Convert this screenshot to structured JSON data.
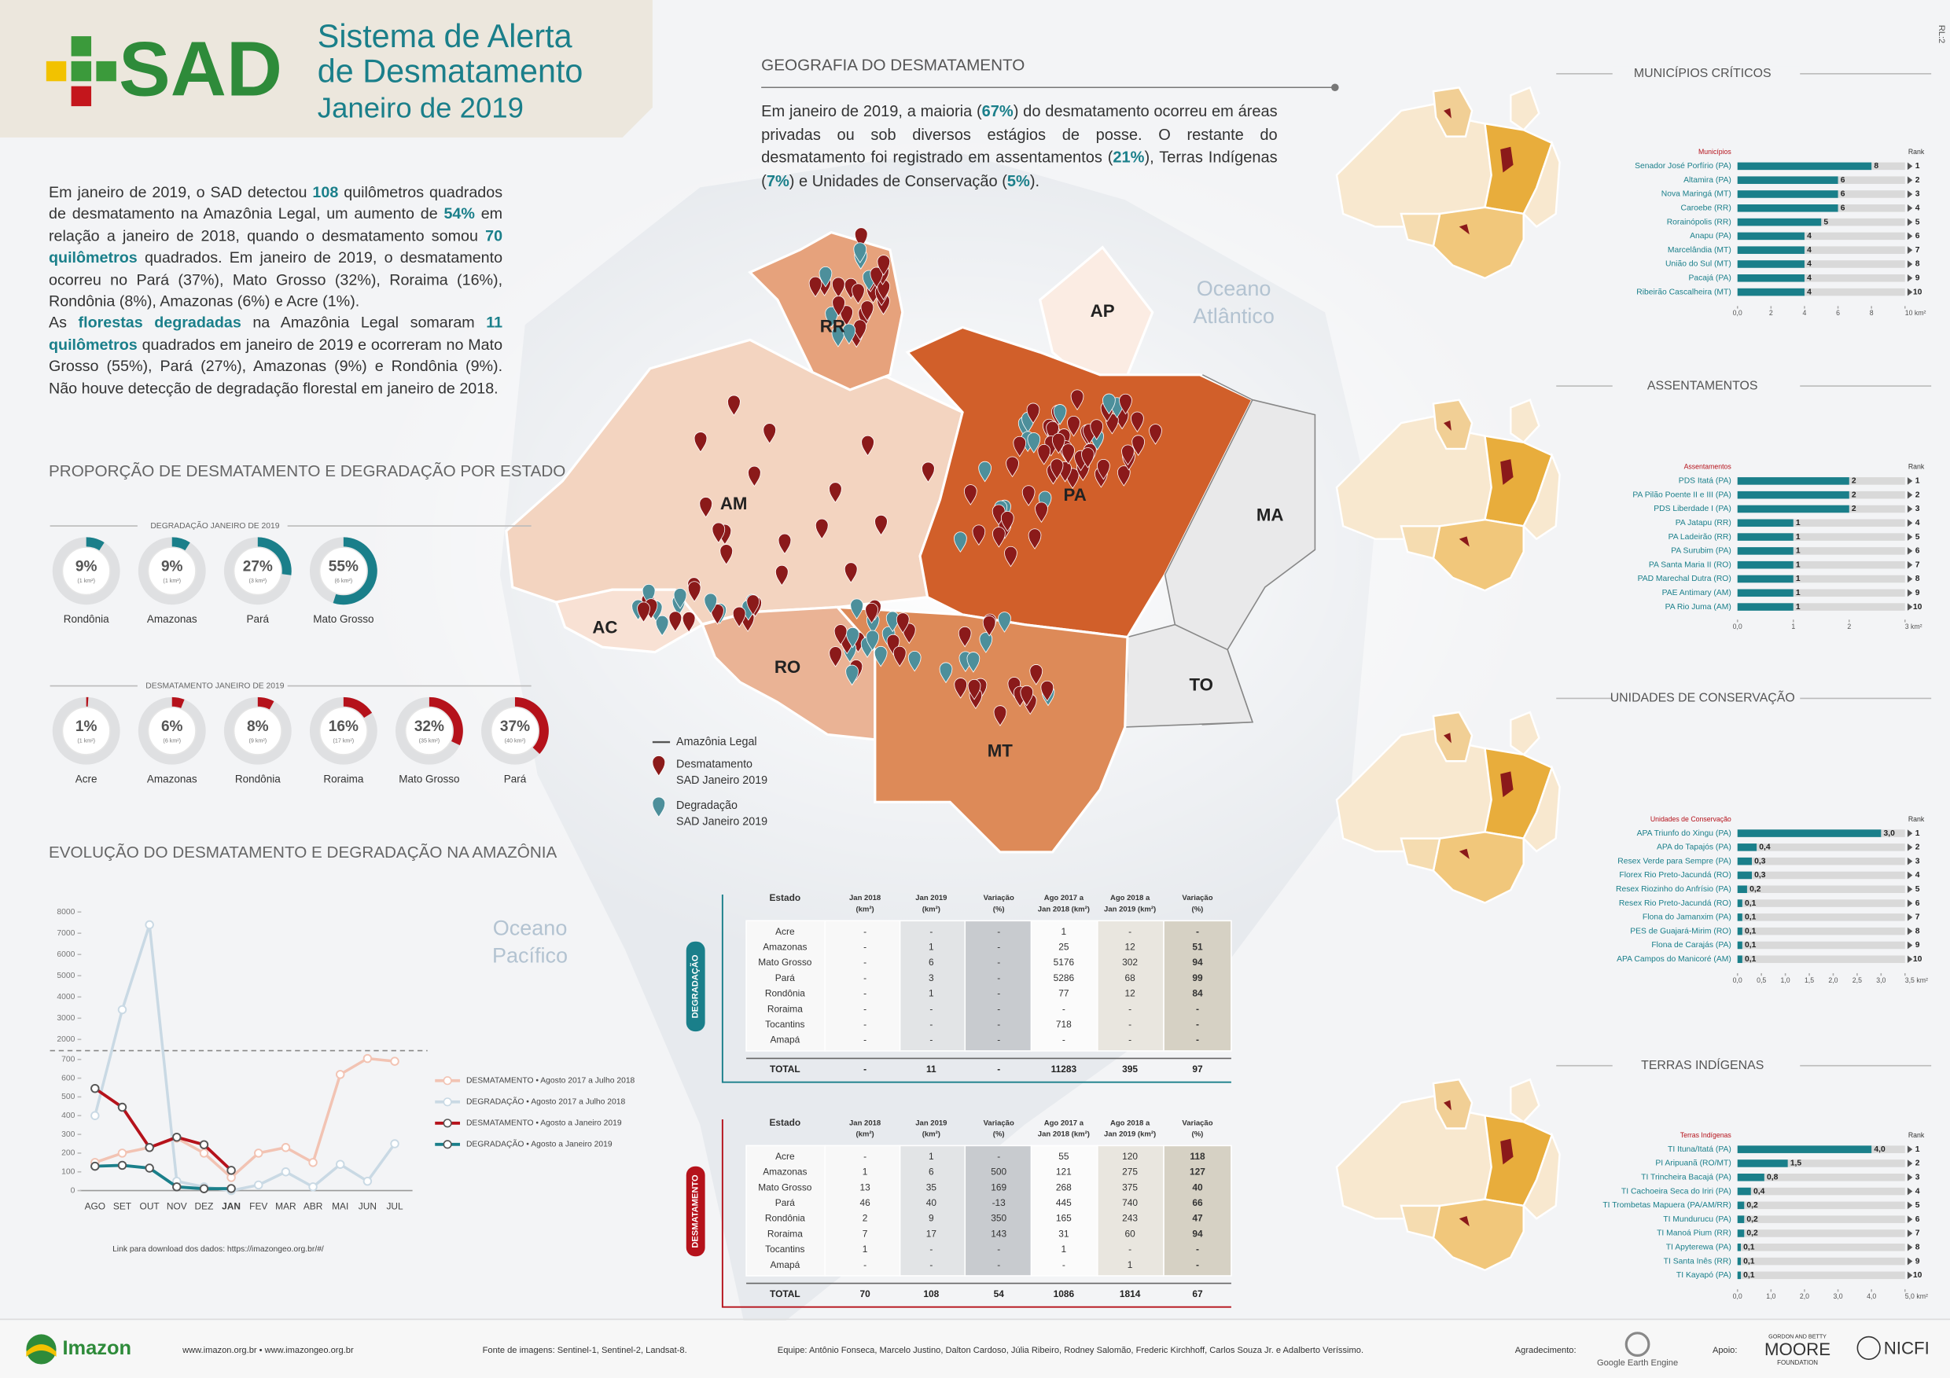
{
  "corner_code": "RL:2",
  "header": {
    "logo": "SAD",
    "title": [
      "Sistema de Alerta",
      "de Desmatamento"
    ],
    "subtitle": "Janeiro de 2019"
  },
  "intro": [
    [
      {
        "text": "Em janeiro de 2019, o SAD detectou "
      },
      {
        "text": "108",
        "em": true
      },
      {
        "text": " quilômetros quadrados de desmatamento na Amazônia Legal, um aumento de "
      },
      {
        "text": "54%",
        "em": true
      },
      {
        "text": " em relação a janeiro de 2018, quando o desmatamento somou "
      },
      {
        "text": "70 quilômetros",
        "em": true
      },
      {
        "text": " quadrados. Em janeiro de 2019, o desmatamento ocorreu no Pará (37%), Mato Grosso (32%), Roraima (16%), Rondônia (8%), Amazonas (6%) e Acre (1%)."
      }
    ],
    [
      {
        "text": "As "
      },
      {
        "text": "florestas degradadas",
        "em": true
      },
      {
        "text": " na Amazônia Legal somaram "
      },
      {
        "text": "11 quilômetros",
        "em": true
      },
      {
        "text": " quadrados em janeiro de 2019 e ocorreram no Mato Grosso (55%), Pará (27%), Amazonas (9%) e Rondônia (9%). Não houve detecção de degradação florestal em janeiro de 2018."
      }
    ]
  ],
  "geografia": {
    "title": "GEOGRAFIA DO DESMATAMENTO",
    "text": [
      {
        "text": "Em janeiro de 2019, a maioria ("
      },
      {
        "text": "67%",
        "em": true
      },
      {
        "text": ") do desmatamento ocorreu em áreas privadas ou sob diversos estágios de posse. O restante do desmatamento foi registrado em assentamentos ("
      },
      {
        "text": "21%",
        "em": true
      },
      {
        "text": "), Terras Indígenas ("
      },
      {
        "text": "7%",
        "em": true
      },
      {
        "text": ") e Unidades de Conservação ("
      },
      {
        "text": "5%",
        "em": true
      },
      {
        "text": ")."
      }
    ]
  },
  "map": {
    "state_labels": [
      "RR",
      "AP",
      "AM",
      "PA",
      "MA",
      "AC",
      "RO",
      "MT",
      "TO"
    ],
    "ocean_labels": [
      [
        "Oceano",
        "Atlântico"
      ],
      [
        "Oceano",
        "Pacífico"
      ]
    ],
    "legend": {
      "boundary": "Amazônia Legal",
      "deforestation": [
        "Desmatamento",
        "SAD Janeiro 2019"
      ],
      "degradation": [
        "Degradação",
        "SAD Janeiro 2019"
      ]
    }
  },
  "proporcao_title": "PROPORÇÃO DE DESMATAMENTO E DEGRADAÇÃO POR ESTADO",
  "data_link": "Link para download dos dados: https://imazongeo.org.br/#/",
  "tables": [
    {
      "side_label": "DEGRADAÇÃO",
      "header": [
        [
          "Estado"
        ],
        [
          "Jan 2018",
          "(km²)"
        ],
        [
          "Jan 2019",
          "(km²)"
        ],
        [
          "Variação",
          "(%)"
        ],
        [
          "Ago 2017 a",
          "Jan 2018 (km²)"
        ],
        [
          "Ago 2018 a",
          "Jan 2019 (km²)"
        ],
        [
          "Variação",
          "(%)"
        ]
      ],
      "rows": [
        [
          "Acre",
          "-",
          "-",
          "-",
          "1",
          "-",
          "-"
        ],
        [
          "Amazonas",
          "-",
          "1",
          "-",
          "25",
          "12",
          "51"
        ],
        [
          "Mato Grosso",
          "-",
          "6",
          "-",
          "5176",
          "302",
          "94"
        ],
        [
          "Pará",
          "-",
          "3",
          "-",
          "5286",
          "68",
          "99"
        ],
        [
          "Rondônia",
          "-",
          "1",
          "-",
          "77",
          "12",
          "84"
        ],
        [
          "Roraima",
          "-",
          "-",
          "-",
          "-",
          "-",
          "-"
        ],
        [
          "Tocantins",
          "-",
          "-",
          "-",
          "718",
          "-",
          "-"
        ],
        [
          "Amapá",
          "-",
          "-",
          "-",
          "-",
          "-",
          "-"
        ]
      ],
      "total": [
        "TOTAL",
        "-",
        "11",
        "-",
        "11283",
        "395",
        "97"
      ]
    },
    {
      "side_label": "DESMATAMENTO",
      "header": [
        [
          "Estado"
        ],
        [
          "Jan 2018",
          "(km²)"
        ],
        [
          "Jan 2019",
          "(km²)"
        ],
        [
          "Variação",
          "(%)"
        ],
        [
          "Ago 2017 a",
          "Jan 2018 (km²)"
        ],
        [
          "Ago 2018 a",
          "Jan 2019 (km²)"
        ],
        [
          "Variação",
          "(%)"
        ]
      ],
      "rows": [
        [
          "Acre",
          "-",
          "1",
          "-",
          "55",
          "120",
          "118"
        ],
        [
          "Amazonas",
          "1",
          "6",
          "500",
          "121",
          "275",
          "127"
        ],
        [
          "Mato Grosso",
          "13",
          "35",
          "169",
          "268",
          "375",
          "40"
        ],
        [
          "Pará",
          "46",
          "40",
          "-13",
          "445",
          "740",
          "66"
        ],
        [
          "Rondônia",
          "2",
          "9",
          "350",
          "165",
          "243",
          "47"
        ],
        [
          "Roraima",
          "7",
          "17",
          "143",
          "31",
          "60",
          "94"
        ],
        [
          "Tocantins",
          "1",
          "-",
          "-",
          "1",
          "-",
          "-"
        ],
        [
          "Amapá",
          "-",
          "-",
          "-",
          "-",
          "1",
          "-"
        ]
      ],
      "total": [
        "TOTAL",
        "70",
        "108",
        "54",
        "1086",
        "1814",
        "67"
      ]
    }
  ],
  "footer": {
    "org": "Imazon",
    "sites": "www.imazon.org.br • www.imazongeo.org.br",
    "source": "Fonte de imagens: Sentinel-1, Sentinel-2, Landsat-8.",
    "team": "Equipe: Antônio Fonseca, Marcelo Justino, Dalton Cardoso, Júlia Ribeiro, Rodney Salomão, Frederic Kirchhoff, Carlos Souza Jr. e Adalberto Veríssimo.",
    "thanks": "Agradecimento:",
    "gee": "Google Earth Engine",
    "support": "Apoio:",
    "moore": [
      "GORDON AND BETTY",
      "MOORE",
      "FOUNDATION"
    ],
    "nicfi": "NICFI"
  },
  "chart_data": [
    {
      "type": "donut",
      "title": "DEGRADAÇÃO JANEIRO DE 2019",
      "color": "#1a7f8a",
      "categories": [
        "Rondônia",
        "Amazonas",
        "Pará",
        "Mato Grosso"
      ],
      "values": [
        9,
        9,
        27,
        55
      ],
      "value_labels": [
        "9%",
        "9%",
        "27%",
        "55%"
      ],
      "area_labels": [
        "(1 km²)",
        "(1 km²)",
        "(3 km²)",
        "(6 km²)"
      ]
    },
    {
      "type": "donut",
      "title": "DESMATAMENTO JANEIRO DE 2019",
      "color": "#b5121b",
      "categories": [
        "Acre",
        "Amazonas",
        "Rondônia",
        "Roraima",
        "Mato Grosso",
        "Pará"
      ],
      "values": [
        1,
        6,
        8,
        16,
        32,
        37
      ],
      "value_labels": [
        "1%",
        "6%",
        "8%",
        "16%",
        "32%",
        "37%"
      ],
      "area_labels": [
        "(1 km²)",
        "(6 km²)",
        "(9 km²)",
        "(17 km²)",
        "(35 km²)",
        "(40 km²)"
      ]
    },
    {
      "type": "line",
      "title": "EVOLUÇÃO DO DESMATAMENTO E DEGRADAÇÃO NA AMAZÔNIA",
      "categories": [
        "AGO",
        "SET",
        "OUT",
        "NOV",
        "DEZ",
        "JAN",
        "FEV",
        "MAR",
        "ABR",
        "MAI",
        "JUN",
        "JUL"
      ],
      "ylim": [
        0,
        8000
      ],
      "ybreak": [
        700,
        2000
      ],
      "yticks": [
        0,
        100,
        200,
        300,
        400,
        500,
        600,
        700,
        2000,
        3000,
        4000,
        5000,
        6000,
        7000,
        8000
      ],
      "series": [
        {
          "name": "DESMATAMENTO • Agosto 2017 a Julho 2018",
          "color": "#f2c3b3",
          "values": [
            150,
            200,
            230,
            280,
            200,
            70,
            200,
            230,
            150,
            620,
            760,
            690
          ]
        },
        {
          "name": "DEGRADAÇÃO • Agosto 2017 a Julho 2018",
          "color": "#c9d9e4",
          "values": [
            400,
            3400,
            7400,
            50,
            20,
            0,
            30,
            100,
            20,
            140,
            50,
            250
          ]
        },
        {
          "name": "DESMATAMENTO • Agosto a Janeiro 2019",
          "color": "#b5121b",
          "values": [
            545,
            445,
            230,
            285,
            245,
            108,
            null,
            null,
            null,
            null,
            null,
            null
          ]
        },
        {
          "name": "DEGRADAÇÃO • Agosto a Janeiro 2019",
          "color": "#1a7f8a",
          "values": [
            130,
            135,
            120,
            20,
            10,
            11,
            null,
            null,
            null,
            null,
            null,
            null
          ]
        }
      ]
    },
    {
      "type": "hbar",
      "title": "MUNICÍPIOS CRÍTICOS",
      "category_header": "Municípios",
      "rank_header": "Rank",
      "color": "#1a7f8a",
      "categories": [
        "Senador José Porfírio (PA)",
        "Altamira (PA)",
        "Nova Maringá (MT)",
        "Caroebe (RR)",
        "Rorainópolis (RR)",
        "Anapu (PA)",
        "Marcelândia (MT)",
        "União do Sul (MT)",
        "Pacajá (PA)",
        "Ribeirão Cascalheira (MT)"
      ],
      "values": [
        8,
        6,
        6,
        6,
        5,
        4,
        4,
        4,
        4,
        4
      ],
      "ranks": [
        1,
        2,
        3,
        4,
        5,
        6,
        7,
        8,
        9,
        10
      ],
      "xlim": [
        0,
        10
      ],
      "xticks": [
        {
          "value": 0,
          "label": "0,0"
        },
        2,
        4,
        6,
        8,
        {
          "value": 10,
          "label": "10 km²"
        }
      ]
    },
    {
      "type": "hbar",
      "title": "ASSENTAMENTOS",
      "category_header": "Assentamentos",
      "rank_header": "Rank",
      "color": "#1a7f8a",
      "categories": [
        "PDS Itatá (PA)",
        "PA Pilão Poente II e III (PA)",
        "PDS Liberdade I (PA)",
        "PA Jatapu (RR)",
        "PA Ladeirão (RR)",
        "PA Surubim (PA)",
        "PA Santa Maria II (RO)",
        "PAD Marechal Dutra (RO)",
        "PAE Antimary (AM)",
        "PA Rio Juma (AM)"
      ],
      "values": [
        2,
        2,
        2,
        1,
        1,
        1,
        1,
        1,
        1,
        1
      ],
      "ranks": [
        1,
        2,
        3,
        4,
        5,
        6,
        7,
        8,
        9,
        10
      ],
      "xlim": [
        0,
        3
      ],
      "xticks": [
        {
          "value": 0,
          "label": "0,0"
        },
        1,
        2,
        {
          "value": 3,
          "label": "3 km²"
        }
      ]
    },
    {
      "type": "hbar",
      "title": "UNIDADES DE CONSERVAÇÃO",
      "category_header": "Unidades de Conservação",
      "rank_header": "Rank",
      "color": "#1a7f8a",
      "categories": [
        "APA Triunfo do Xingu (PA)",
        "APA do Tapajós (PA)",
        "Resex Verde para Sempre (PA)",
        "Florex Rio Preto-Jacundá (RO)",
        "Resex Riozinho do Anfrísio (PA)",
        "Resex Rio Preto-Jacundá (RO)",
        "Flona do Jamanxim (PA)",
        "PES de Guajará-Mirim (RO)",
        "Flona de Carajás (PA)",
        "APA Campos do Manicoré (AM)"
      ],
      "values": [
        3.0,
        0.4,
        0.3,
        0.3,
        0.2,
        0.1,
        0.1,
        0.1,
        0.1,
        0.1
      ],
      "value_labels": [
        "3,0",
        "0,4",
        "0,3",
        "0,3",
        "0,2",
        "0,1",
        "0,1",
        "0,1",
        "0,1",
        "0,1"
      ],
      "ranks": [
        1,
        2,
        3,
        4,
        5,
        6,
        7,
        8,
        9,
        10
      ],
      "xlim": [
        0,
        3.5
      ],
      "xticks": [
        {
          "value": 0,
          "label": "0,0"
        },
        {
          "value": 0.5,
          "label": "0,5"
        },
        {
          "value": 1,
          "label": "1,0"
        },
        {
          "value": 1.5,
          "label": "1,5"
        },
        {
          "value": 2,
          "label": "2,0"
        },
        {
          "value": 2.5,
          "label": "2,5"
        },
        {
          "value": 3,
          "label": "3,0"
        },
        {
          "value": 3.5,
          "label": "3,5 km²"
        }
      ]
    },
    {
      "type": "hbar",
      "title": "TERRAS INDÍGENAS",
      "category_header": "Terras Indígenas",
      "rank_header": "Rank",
      "color": "#1a7f8a",
      "categories": [
        "TI Ituna/Itatá (PA)",
        "PI Aripuanã (RO/MT)",
        "TI Trincheira Bacajá (PA)",
        "TI Cachoeira Seca do Iriri (PA)",
        "TI Trombetas Mapuera (PA/AM/RR)",
        "TI Mundurucu (PA)",
        "TI Manoá Pium (RR)",
        "TI Apyterewa (PA)",
        "TI Santa Inês (RR)",
        "TI Kayapó (PA)"
      ],
      "values": [
        4.0,
        1.5,
        0.8,
        0.4,
        0.2,
        0.2,
        0.2,
        0.1,
        0.1,
        0.1
      ],
      "value_labels": [
        "4,0",
        "1,5",
        "0,8",
        "0,4",
        "0,2",
        "0,2",
        "0,2",
        "0,1",
        "0,1",
        "0,1"
      ],
      "ranks": [
        1,
        2,
        3,
        4,
        5,
        6,
        7,
        8,
        9,
        10
      ],
      "xlim": [
        0,
        5
      ],
      "xticks": [
        {
          "value": 0,
          "label": "0,0"
        },
        {
          "value": 1,
          "label": "1,0"
        },
        {
          "value": 2,
          "label": "2,0"
        },
        {
          "value": 3,
          "label": "3,0"
        },
        {
          "value": 4,
          "label": "4,0"
        },
        {
          "value": 5,
          "label": "5,0 km²"
        }
      ]
    }
  ]
}
